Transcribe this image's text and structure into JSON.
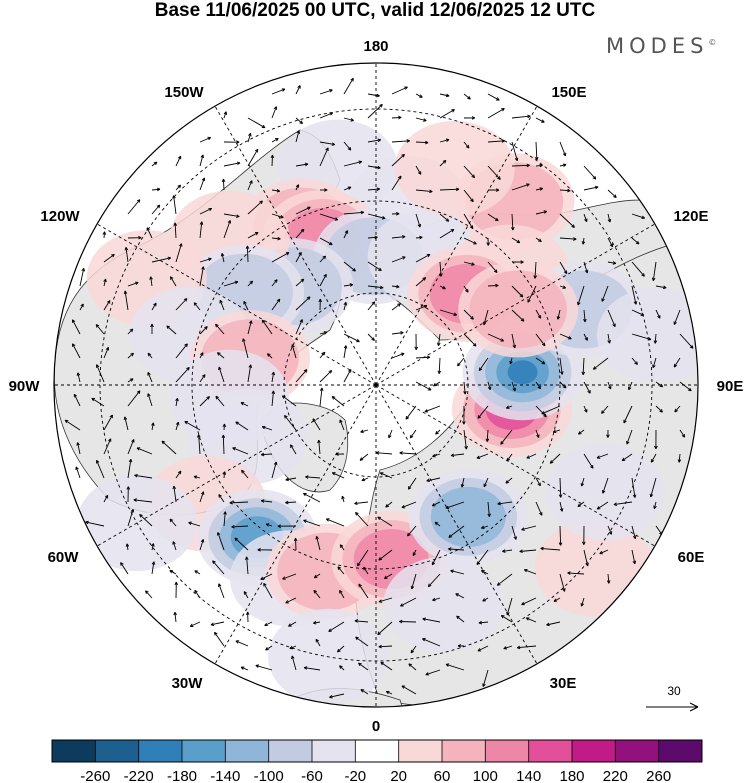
{
  "title": "Base 11/06/2025 00 UTC, valid 12/06/2025 12 UTC",
  "brand": {
    "name": "MODES",
    "mark": "©"
  },
  "longitude_labels": {
    "top": "180",
    "top_left": "150W",
    "top_right": "150E",
    "upper_left": "120W",
    "upper_right": "120E",
    "left": "90W",
    "right": "90E",
    "lower_left": "60W",
    "lower_right": "60E",
    "bottom_left": "30W",
    "bottom_right": "30E",
    "bottom": "0"
  },
  "reference_vector": {
    "label": "30"
  },
  "colorbar": {
    "labels": [
      "-260",
      "-220",
      "-180",
      "-140",
      "-100",
      "-60",
      "-20",
      "20",
      "60",
      "100",
      "140",
      "180",
      "220",
      "260"
    ],
    "colors": [
      "#0d3b5e",
      "#1d5f8e",
      "#2f7fb8",
      "#5a9fcb",
      "#8fb6d9",
      "#c2cbe2",
      "#e4e3ef",
      "#ffffff",
      "#f9d8d8",
      "#f4b3bd",
      "#ee86a8",
      "#e34f9a",
      "#c21a86",
      "#92117c",
      "#5c0a6b"
    ]
  },
  "map": {
    "colors": {
      "land": "#e6e6e6",
      "coast": "#333333",
      "grid": "#000000",
      "vector": "#000000"
    },
    "anomalies": [
      {
        "lon": 170,
        "lat": 50,
        "value": -45
      },
      {
        "lon": 190,
        "lat": 42,
        "value": -35
      },
      {
        "lon": 205,
        "lat": 52,
        "value": 90
      },
      {
        "lon": 200,
        "lat": 56,
        "value": 110
      },
      {
        "lon": 181,
        "lat": 62,
        "value": -65
      },
      {
        "lon": 158,
        "lat": 60,
        "value": -45
      },
      {
        "lon": 143,
        "lat": 40,
        "value": 90
      },
      {
        "lon": 130,
        "lat": 52,
        "value": 45
      },
      {
        "lon": 135,
        "lat": 62,
        "value": 120
      },
      {
        "lon": 220,
        "lat": 62,
        "value": -70
      },
      {
        "lon": 225,
        "lat": 45,
        "value": 55
      },
      {
        "lon": 235,
        "lat": 55,
        "value": -80
      },
      {
        "lon": 245,
        "lat": 35,
        "value": 45
      },
      {
        "lon": 255,
        "lat": 48,
        "value": -40
      },
      {
        "lon": 258,
        "lat": 62,
        "value": 85
      },
      {
        "lon": 275,
        "lat": 58,
        "value": -25
      },
      {
        "lon": 292,
        "lat": 60,
        "value": -40
      },
      {
        "lon": 305,
        "lat": 45,
        "value": 55
      },
      {
        "lon": 322,
        "lat": 48,
        "value": -175
      },
      {
        "lon": 336,
        "lat": 44,
        "value": -55
      },
      {
        "lon": 345,
        "lat": 48,
        "value": 75
      },
      {
        "lon": 5,
        "lat": 52,
        "value": 105
      },
      {
        "lon": 17,
        "lat": 40,
        "value": -35
      },
      {
        "lon": 35,
        "lat": 55,
        "value": -120
      },
      {
        "lon": 50,
        "lat": 28,
        "value": 45
      },
      {
        "lon": 80,
        "lat": 60,
        "value": 145
      },
      {
        "lon": 95,
        "lat": 58,
        "value": -185
      },
      {
        "lon": 110,
        "lat": 42,
        "value": -65
      },
      {
        "lon": 118,
        "lat": 55,
        "value": 75
      },
      {
        "lon": 160,
        "lat": 40,
        "value": 35
      },
      {
        "lon": 65,
        "lat": 35,
        "value": -35
      },
      {
        "lon": 100,
        "lat": 28,
        "value": -35
      },
      {
        "lon": 350,
        "lat": 30,
        "value": -30
      },
      {
        "lon": 300,
        "lat": 30,
        "value": -25
      }
    ]
  }
}
